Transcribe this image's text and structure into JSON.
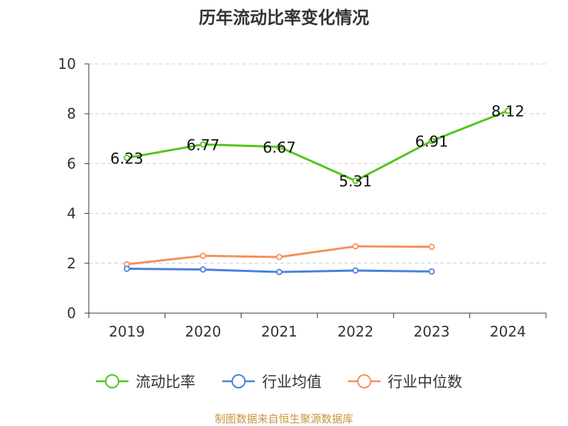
{
  "chart_data": {
    "type": "line",
    "title": "历年流动比率变化情况",
    "categories": [
      "2019",
      "2020",
      "2021",
      "2022",
      "2023",
      "2024"
    ],
    "ylim": [
      0,
      10
    ],
    "yticks": [
      0,
      2,
      4,
      6,
      8,
      10
    ],
    "grid": true,
    "legend_position": "bottom",
    "series": [
      {
        "name": "流动比率",
        "color": "#52c41a",
        "values": [
          6.23,
          6.77,
          6.67,
          5.31,
          6.91,
          8.12
        ],
        "labels": [
          "6.23",
          "6.77",
          "6.67",
          "5.31",
          "6.91",
          "8.12"
        ],
        "show_labels": true
      },
      {
        "name": "行业均值",
        "color": "#4a7fe0",
        "values": [
          1.78,
          1.75,
          1.65,
          1.71,
          1.67,
          null
        ],
        "show_labels": false
      },
      {
        "name": "行业中位数",
        "color": "#f4905a",
        "values": [
          1.96,
          2.3,
          2.25,
          2.68,
          2.66,
          null
        ],
        "show_labels": false
      }
    ],
    "source": "制图数据来自恒生聚源数据库"
  }
}
